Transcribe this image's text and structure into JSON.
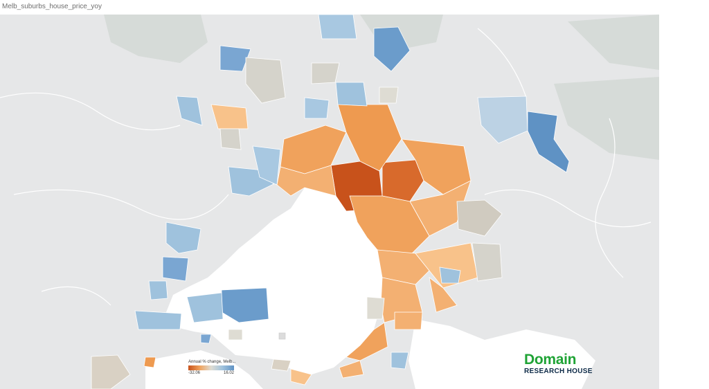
{
  "sheet": {
    "title": "Melb_suburbs_house_price_yoy"
  },
  "colors": {
    "land": "#e6e7e8",
    "water": "#ffffff",
    "hills": "#d6dbd8",
    "border": "#ffffff",
    "negative_strong": "#c8521b",
    "negative": "#f0a25c",
    "neutral": "#dedcd3",
    "positive": "#9fc2dd",
    "positive_strong": "#5f92c4"
  },
  "legend": {
    "title": "Annual % change, Melb...",
    "min_label": "-32.06",
    "max_label": "16.02",
    "min_value": -32.06,
    "max_value": 16.02
  },
  "brand": {
    "name": "Domain",
    "subtitle": "RESEARCH HOUSE"
  }
}
